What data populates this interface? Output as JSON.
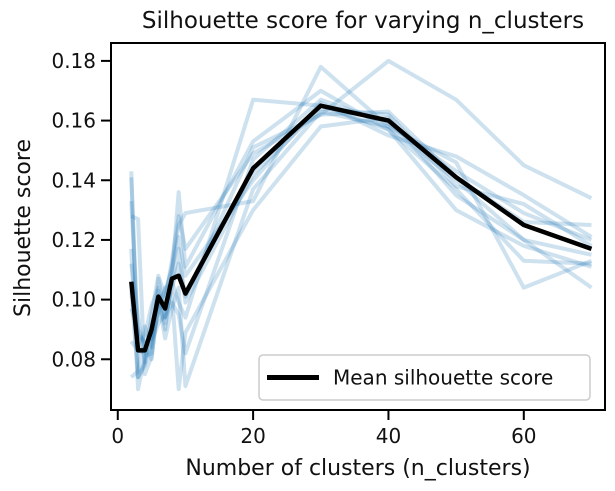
{
  "chart_data": {
    "type": "line",
    "title": "Silhouette score for varying n_clusters",
    "xlabel": "Number of clusters (n_clusters)",
    "ylabel": "Silhouette score",
    "xlim": [
      -1,
      72
    ],
    "ylim": [
      0.063,
      0.186
    ],
    "xticks": [
      0,
      20,
      40,
      60
    ],
    "yticks": [
      0.08,
      0.1,
      0.12,
      0.14,
      0.16,
      0.18
    ],
    "ytick_labels": [
      "0.08",
      "0.10",
      "0.12",
      "0.14",
      "0.16",
      "0.18"
    ],
    "xtick_labels": [
      "0",
      "20",
      "40",
      "60"
    ],
    "grid": false,
    "legend_position": "lower-right",
    "x": [
      2,
      3,
      4,
      5,
      6,
      7,
      8,
      9,
      10,
      20,
      30,
      40,
      50,
      60,
      70
    ],
    "series": [
      {
        "name": "Mean silhouette score",
        "color": "#000000",
        "values": [
          0.106,
          0.083,
          0.083,
          0.09,
          0.101,
          0.097,
          0.107,
          0.108,
          0.102,
          0.144,
          0.165,
          0.16,
          0.141,
          0.125,
          0.117
        ]
      }
    ],
    "runs": [
      {
        "color": "#1f77b4",
        "values": [
          0.143,
          0.074,
          0.079,
          0.095,
          0.108,
          0.101,
          0.111,
          0.125,
          0.129,
          0.133,
          0.178,
          0.158,
          0.14,
          0.12,
          0.115
        ]
      },
      {
        "color": "#1f77b4",
        "values": [
          0.141,
          0.085,
          0.088,
          0.098,
          0.104,
          0.094,
          0.104,
          0.112,
          0.101,
          0.151,
          0.162,
          0.18,
          0.167,
          0.145,
          0.134
        ]
      },
      {
        "color": "#1f77b4",
        "values": [
          0.128,
          0.127,
          0.075,
          0.081,
          0.098,
          0.092,
          0.106,
          0.099,
          0.094,
          0.167,
          0.165,
          0.157,
          0.137,
          0.113,
          0.112
        ]
      },
      {
        "color": "#1f77b4",
        "values": [
          0.112,
          0.094,
          0.079,
          0.088,
          0.103,
          0.09,
          0.108,
          0.136,
          0.111,
          0.153,
          0.17,
          0.157,
          0.13,
          0.118,
          0.111
        ]
      },
      {
        "color": "#1f77b4",
        "values": [
          0.086,
          0.083,
          0.082,
          0.092,
          0.099,
          0.103,
          0.11,
          0.121,
          0.108,
          0.14,
          0.166,
          0.155,
          0.148,
          0.135,
          0.121
        ]
      },
      {
        "color": "#1f77b4",
        "values": [
          0.074,
          0.076,
          0.091,
          0.084,
          0.097,
          0.1,
          0.113,
          0.128,
          0.117,
          0.149,
          0.162,
          0.163,
          0.141,
          0.126,
          0.125
        ]
      },
      {
        "color": "#1f77b4",
        "values": [
          0.097,
          0.09,
          0.085,
          0.08,
          0.1,
          0.087,
          0.097,
          0.104,
          0.071,
          0.137,
          0.163,
          0.158,
          0.146,
          0.104,
          0.113
        ]
      },
      {
        "color": "#1f77b4",
        "values": [
          0.103,
          0.074,
          0.078,
          0.086,
          0.092,
          0.095,
          0.102,
          0.07,
          0.089,
          0.13,
          0.158,
          0.161,
          0.135,
          0.12,
          0.104
        ]
      },
      {
        "color": "#1f77b4",
        "values": [
          0.117,
          0.07,
          0.081,
          0.082,
          0.107,
          0.094,
          0.099,
          0.095,
          0.082,
          0.147,
          0.167,
          0.159,
          0.143,
          0.129,
          0.12
        ]
      },
      {
        "color": "#1f77b4",
        "values": [
          0.133,
          0.088,
          0.086,
          0.087,
          0.095,
          0.104,
          0.105,
          0.117,
          0.099,
          0.142,
          0.164,
          0.162,
          0.138,
          0.132,
          0.118
        ]
      }
    ],
    "legend": [
      {
        "label": "Mean silhouette score",
        "color": "#000000"
      }
    ]
  }
}
